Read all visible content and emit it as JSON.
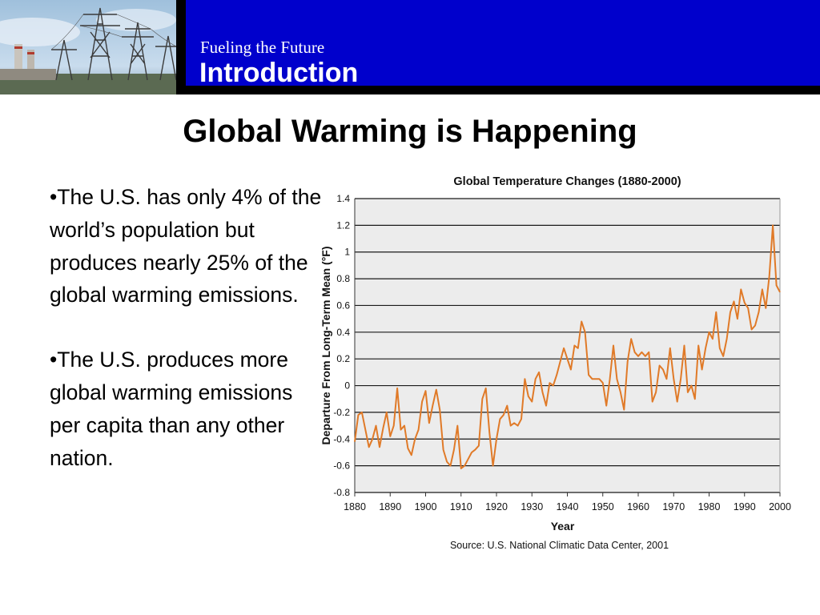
{
  "header": {
    "subtitle": "Fueling the Future",
    "title": "Introduction",
    "colors": {
      "band": "#0000cc",
      "frame": "#000000",
      "text": "#ffffff"
    }
  },
  "slide": {
    "title": "Global Warming is Happening",
    "bullets": [
      "•The U.S. has only 4% of the world’s population but produces nearly 25% of the global warming emissions.",
      "•The U.S. produces more global warming emissions per capita than any other nation."
    ]
  },
  "chart_data": {
    "type": "line",
    "title": "Global Temperature Changes (1880-2000)",
    "xlabel": "Year",
    "ylabel": "Departure From Long-Term Mean (°F)",
    "source": "Source: U.S. National Climatic Data Center, 2001",
    "xlim": [
      1880,
      2000
    ],
    "ylim": [
      -0.8,
      1.4
    ],
    "xticks": [
      1880,
      1890,
      1900,
      1910,
      1920,
      1930,
      1940,
      1950,
      1960,
      1970,
      1980,
      1990,
      2000
    ],
    "yticks": [
      1.4,
      1.2,
      1,
      0.8,
      0.6,
      0.4,
      0.2,
      0,
      -0.2,
      -0.4,
      -0.6,
      -0.8
    ],
    "grid": true,
    "line_color": "#e07a28",
    "plot_bg": "#ececec",
    "series": [
      {
        "x": [
          1880,
          1881,
          1882,
          1883,
          1884,
          1885,
          1886,
          1887,
          1888,
          1889,
          1890,
          1891,
          1892,
          1893,
          1894,
          1895,
          1896,
          1897,
          1898,
          1899,
          1900,
          1901,
          1902,
          1903,
          1904,
          1905,
          1906,
          1907,
          1908,
          1909,
          1910,
          1911,
          1912,
          1913,
          1914,
          1915,
          1916,
          1917,
          1918,
          1919,
          1920,
          1921,
          1922,
          1923,
          1924,
          1925,
          1926,
          1927,
          1928,
          1929,
          1930,
          1931,
          1932,
          1933,
          1934,
          1935,
          1936,
          1937,
          1938,
          1939,
          1940,
          1941,
          1942,
          1943,
          1944,
          1945,
          1946,
          1947,
          1948,
          1949,
          1950,
          1951,
          1952,
          1953,
          1954,
          1955,
          1956,
          1957,
          1958,
          1959,
          1960,
          1961,
          1962,
          1963,
          1964,
          1965,
          1966,
          1967,
          1968,
          1969,
          1970,
          1971,
          1972,
          1973,
          1974,
          1975,
          1976,
          1977,
          1978,
          1979,
          1980,
          1981,
          1982,
          1983,
          1984,
          1985,
          1986,
          1987,
          1988,
          1989,
          1990,
          1991,
          1992,
          1993,
          1994,
          1995,
          1996,
          1997,
          1998,
          1999,
          2000
        ],
        "y": [
          -0.42,
          -0.22,
          -0.2,
          -0.33,
          -0.46,
          -0.4,
          -0.3,
          -0.46,
          -0.32,
          -0.2,
          -0.38,
          -0.3,
          -0.02,
          -0.33,
          -0.3,
          -0.47,
          -0.52,
          -0.4,
          -0.33,
          -0.12,
          -0.04,
          -0.28,
          -0.15,
          -0.03,
          -0.18,
          -0.48,
          -0.57,
          -0.6,
          -0.48,
          -0.3,
          -0.62,
          -0.6,
          -0.55,
          -0.5,
          -0.48,
          -0.45,
          -0.1,
          -0.02,
          -0.35,
          -0.6,
          -0.4,
          -0.25,
          -0.22,
          -0.15,
          -0.3,
          -0.28,
          -0.3,
          -0.25,
          0.05,
          -0.08,
          -0.12,
          0.05,
          0.1,
          -0.05,
          -0.15,
          0.02,
          0.0,
          0.08,
          0.18,
          0.28,
          0.2,
          0.12,
          0.3,
          0.28,
          0.48,
          0.4,
          0.08,
          0.05,
          0.05,
          0.05,
          0.02,
          -0.15,
          0.05,
          0.3,
          0.05,
          -0.05,
          -0.18,
          0.18,
          0.35,
          0.25,
          0.22,
          0.25,
          0.22,
          0.25,
          -0.12,
          -0.05,
          0.15,
          0.12,
          0.05,
          0.28,
          0.05,
          -0.12,
          0.05,
          0.3,
          -0.05,
          0.0,
          -0.1,
          0.3,
          0.12,
          0.28,
          0.4,
          0.35,
          0.55,
          0.28,
          0.22,
          0.35,
          0.55,
          0.63,
          0.5,
          0.72,
          0.62,
          0.58,
          0.42,
          0.45,
          0.55,
          0.72,
          0.58,
          0.82,
          1.2,
          0.75,
          0.7
        ]
      }
    ]
  }
}
